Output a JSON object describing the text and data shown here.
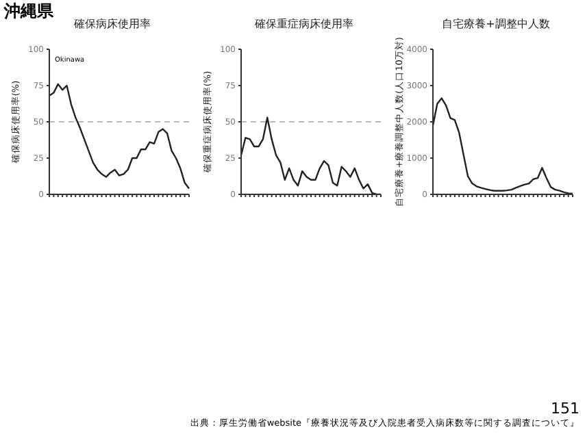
{
  "chart_data": [
    {
      "type": "line",
      "title": "確保病床使用率",
      "ylabel": "確保病床使用率(%)",
      "annotations": [
        "沖縄県",
        "Okinawa"
      ],
      "categories": [
        null,
        null,
        null,
        null,
        null,
        null,
        null,
        null,
        null,
        null,
        null,
        null,
        null,
        null,
        null,
        null,
        null,
        null,
        null,
        null,
        null,
        null,
        null,
        null,
        null,
        null,
        null,
        null,
        null,
        null,
        null,
        null,
        null
      ],
      "series": [
        {
          "color": "#222222",
          "values": [
            68,
            70,
            76,
            72,
            75,
            62,
            53,
            46,
            38,
            30,
            22,
            17,
            14,
            12,
            15,
            17,
            13,
            14,
            17,
            25,
            25,
            31,
            31,
            36,
            35,
            43,
            45,
            42,
            30,
            25,
            18,
            8,
            4
          ]
        }
      ],
      "ylim": [
        0,
        100
      ],
      "yticks": [
        0,
        25,
        50,
        75,
        100
      ],
      "ref_lines": [
        {
          "axis": "y",
          "value": 50,
          "color": "#bbbbbb",
          "line_style": "dashed"
        }
      ],
      "grid": false,
      "marker": "none",
      "line_style": "solid"
    },
    {
      "type": "line",
      "title": "確保重症病床使用率",
      "ylabel": "確保重症病床使用率(%)",
      "categories": [
        null,
        null,
        null,
        null,
        null,
        null,
        null,
        null,
        null,
        null,
        null,
        null,
        null,
        null,
        null,
        null,
        null,
        null,
        null,
        null,
        null,
        null,
        null,
        null,
        null,
        null,
        null,
        null,
        null,
        null,
        null,
        null,
        null
      ],
      "series": [
        {
          "color": "#222222",
          "values": [
            27,
            39,
            38,
            33,
            33,
            38,
            53,
            38,
            27,
            22,
            10,
            18,
            10,
            6,
            16,
            12,
            10,
            10,
            18,
            23,
            20,
            8,
            6,
            19,
            16,
            12,
            18,
            10,
            4,
            7,
            1,
            0,
            0
          ]
        }
      ],
      "ylim": [
        0,
        100
      ],
      "yticks": [
        0,
        25,
        50,
        75,
        100
      ],
      "ref_lines": [
        {
          "axis": "y",
          "value": 50,
          "color": "#bbbbbb",
          "line_style": "dashed"
        }
      ],
      "grid": false,
      "marker": "none",
      "line_style": "solid"
    },
    {
      "type": "line",
      "title": "自宅療養+調整中人数",
      "ylabel": "自宅療養+療養調整中人数(人口10万対)",
      "annotations": [
        "151",
        "出典：厚生労働省website『療養状況等及び入院患者受入病床数等に関する調査について』"
      ],
      "categories": [
        null,
        null,
        null,
        null,
        null,
        null,
        null,
        null,
        null,
        null,
        null,
        null,
        null,
        null,
        null,
        null,
        null,
        null,
        null,
        null,
        null,
        null,
        null,
        null,
        null,
        null,
        null,
        null,
        null,
        null,
        null,
        null,
        null
      ],
      "series": [
        {
          "color": "#222222",
          "values": [
            1900,
            2500,
            2650,
            2450,
            2100,
            2050,
            1700,
            1100,
            500,
            300,
            220,
            180,
            150,
            120,
            100,
            100,
            100,
            110,
            130,
            180,
            230,
            270,
            300,
            420,
            450,
            730,
            450,
            200,
            130,
            100,
            60,
            30,
            20
          ]
        }
      ],
      "ylim": [
        0,
        4000
      ],
      "yticks": [
        0,
        1000,
        2000,
        3000,
        4000
      ],
      "grid": false,
      "marker": "none",
      "line_style": "solid"
    }
  ]
}
